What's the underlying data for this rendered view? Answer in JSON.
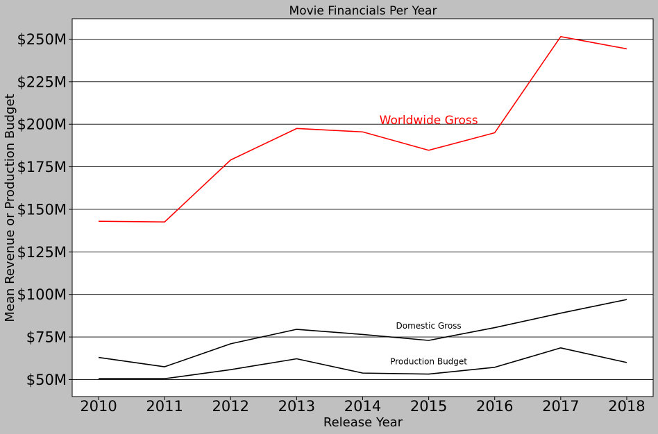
{
  "chart_data": {
    "type": "line",
    "title": "Movie Financials Per Year",
    "xlabel": "Release Year",
    "ylabel": "Mean Revenue or Production Budget",
    "x": [
      2010,
      2011,
      2012,
      2013,
      2014,
      2015,
      2016,
      2017,
      2018
    ],
    "xlim": [
      2009.6,
      2018.4
    ],
    "ylim": [
      40,
      262
    ],
    "y_unit": "millions USD",
    "yticks": [
      50,
      75,
      100,
      125,
      150,
      175,
      200,
      225,
      250
    ],
    "ytick_labels": [
      "$50M",
      "$75M",
      "$100M",
      "$125M",
      "$150M",
      "$175M",
      "$200M",
      "$225M",
      "$250M"
    ],
    "xtick_labels": [
      "2010",
      "2011",
      "2012",
      "2013",
      "2014",
      "2015",
      "2016",
      "2017",
      "2018"
    ],
    "grid": "horizontal",
    "series": [
      {
        "name": "Worldwide Gross",
        "color": "#ff0000",
        "values": [
          143.0,
          142.6,
          179.0,
          197.5,
          195.5,
          184.7,
          195.0,
          251.5,
          244.3
        ],
        "label_anchor": {
          "x": 2015.0,
          "y": 200
        }
      },
      {
        "name": "Domestic Gross",
        "color": "#000000",
        "values": [
          63.0,
          57.5,
          71.0,
          79.5,
          76.5,
          73.0,
          80.5,
          89.0,
          97.0
        ],
        "label_anchor": {
          "x": 2015.0,
          "y": 80
        }
      },
      {
        "name": "Production Budget",
        "color": "#000000",
        "values": [
          50.5,
          50.5,
          55.8,
          62.2,
          53.8,
          53.2,
          57.2,
          68.6,
          60.0
        ],
        "label_anchor": {
          "x": 2015.0,
          "y": 59
        }
      }
    ]
  }
}
